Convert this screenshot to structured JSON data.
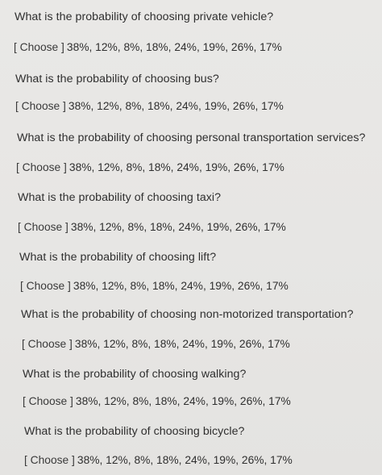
{
  "quiz": {
    "choose_label": "[ Choose ]",
    "options_text": "38%, 12%, 8%, 18%, 24%, 19%, 26%, 17%",
    "questions": [
      {
        "text": "What is the probability of choosing private vehicle?"
      },
      {
        "text": "What is the probability of choosing bus?"
      },
      {
        "text": "What is the probability of choosing personal transportation services?"
      },
      {
        "text": "What is the probability of choosing taxi?"
      },
      {
        "text": "What is the probability of choosing lift?"
      },
      {
        "text": "What is the probability of choosing non-motorized transportation?"
      },
      {
        "text": "What is the probability of choosing walking?"
      },
      {
        "text": "What is the probability of choosing bicycle?"
      }
    ]
  }
}
